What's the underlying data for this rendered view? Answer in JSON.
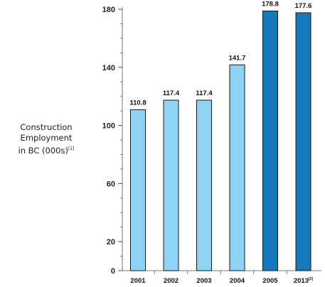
{
  "chart_data": {
    "type": "bar",
    "categories": [
      "2001",
      "2002",
      "2003",
      "2004",
      "2005",
      "2013"
    ],
    "category_refs": [
      "",
      "",
      "",
      "",
      "",
      "[2]"
    ],
    "values": [
      110.8,
      117.4,
      117.4,
      141.7,
      178.8,
      177.6
    ],
    "value_labels": [
      "110.8",
      "117.4",
      "117.4",
      "141.7",
      "178.8",
      "177.6"
    ],
    "bar_colors": [
      "#8ed3f5",
      "#8ed3f5",
      "#8ed3f5",
      "#8ed3f5",
      "#1479b8",
      "#1479b8"
    ],
    "bar_stroke": "#1a1a1a",
    "ylabel_lines": [
      "Construction",
      "Employment",
      "in BC (000s)"
    ],
    "ylabel_ref": "[1]",
    "yticks": [
      0,
      20,
      60,
      100,
      140,
      180
    ],
    "ytick_labels": [
      "0",
      "20",
      "60",
      "100",
      "140",
      "180"
    ],
    "ylim": [
      0,
      180
    ],
    "grid": false,
    "legend": "none"
  }
}
